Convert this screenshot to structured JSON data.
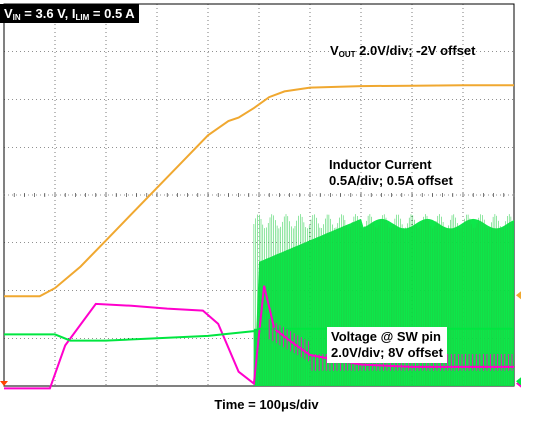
{
  "header": {
    "vin_main": "V",
    "vin_sub": "IN",
    "vin_value": " = 3.6 V, ",
    "ilim_main": "I",
    "ilim_sub": "LIM",
    "ilim_value": " = 0.5 A"
  },
  "labels": {
    "vout_main": "V",
    "vout_sub": "OUT",
    "vout_rest": " 2.0V/div; -2V offset",
    "inductor_line1": "Inductor Current",
    "inductor_line2": "0.5A/div; 0.5A offset",
    "sw_line1": "Voltage @ SW pin",
    "sw_line2": "2.0V/div; 8V offset",
    "time": "Time = 100μs/div"
  },
  "colors": {
    "background": "#ffffff",
    "grid": "#000000",
    "vout": "#f0a830",
    "inductor": "#ff00cc",
    "sw": "#00e640",
    "marker": "#ff4400"
  },
  "chart_data": {
    "type": "line",
    "grid": true,
    "x_divisions": 10,
    "y_divisions": 8,
    "x_unit": "div",
    "xlim": [
      0,
      10
    ],
    "ylim": [
      0,
      8
    ],
    "series": [
      {
        "name": "VOUT",
        "x": [
          0,
          0.7,
          1.0,
          1.5,
          2.0,
          2.5,
          3.0,
          3.5,
          4.0,
          4.4,
          4.6,
          4.9,
          5.2,
          5.5,
          6.0,
          7.0,
          8.0,
          9.0,
          10.0
        ],
        "y": [
          1.88,
          1.88,
          2.05,
          2.5,
          3.05,
          3.6,
          4.15,
          4.7,
          5.25,
          5.55,
          5.62,
          5.82,
          6.05,
          6.17,
          6.25,
          6.28,
          6.29,
          6.3,
          6.3
        ]
      },
      {
        "name": "Inductor Current",
        "x": [
          0,
          0.9,
          1.2,
          1.8,
          2.5,
          3.2,
          3.9,
          4.2,
          4.6,
          4.9,
          5.1,
          5.3,
          5.6,
          6.0,
          7.0,
          8.0,
          9.0,
          10.0
        ],
        "y": [
          -0.05,
          -0.05,
          0.85,
          1.72,
          1.68,
          1.62,
          1.58,
          1.3,
          0.3,
          0.05,
          2.1,
          1.2,
          0.95,
          0.65,
          0.45,
          0.4,
          0.4,
          0.4
        ]
      },
      {
        "name": "SW pin",
        "x": [
          0,
          1.0,
          1.3,
          2.0,
          3.0,
          4.0,
          4.9,
          5.0,
          6.0,
          7.0,
          8.0,
          9.0,
          10.0
        ],
        "y": [
          1.08,
          1.08,
          0.95,
          0.95,
          1.0,
          1.05,
          1.15,
          1.2,
          1.2,
          1.2,
          1.2,
          1.2,
          1.2
        ]
      }
    ]
  }
}
